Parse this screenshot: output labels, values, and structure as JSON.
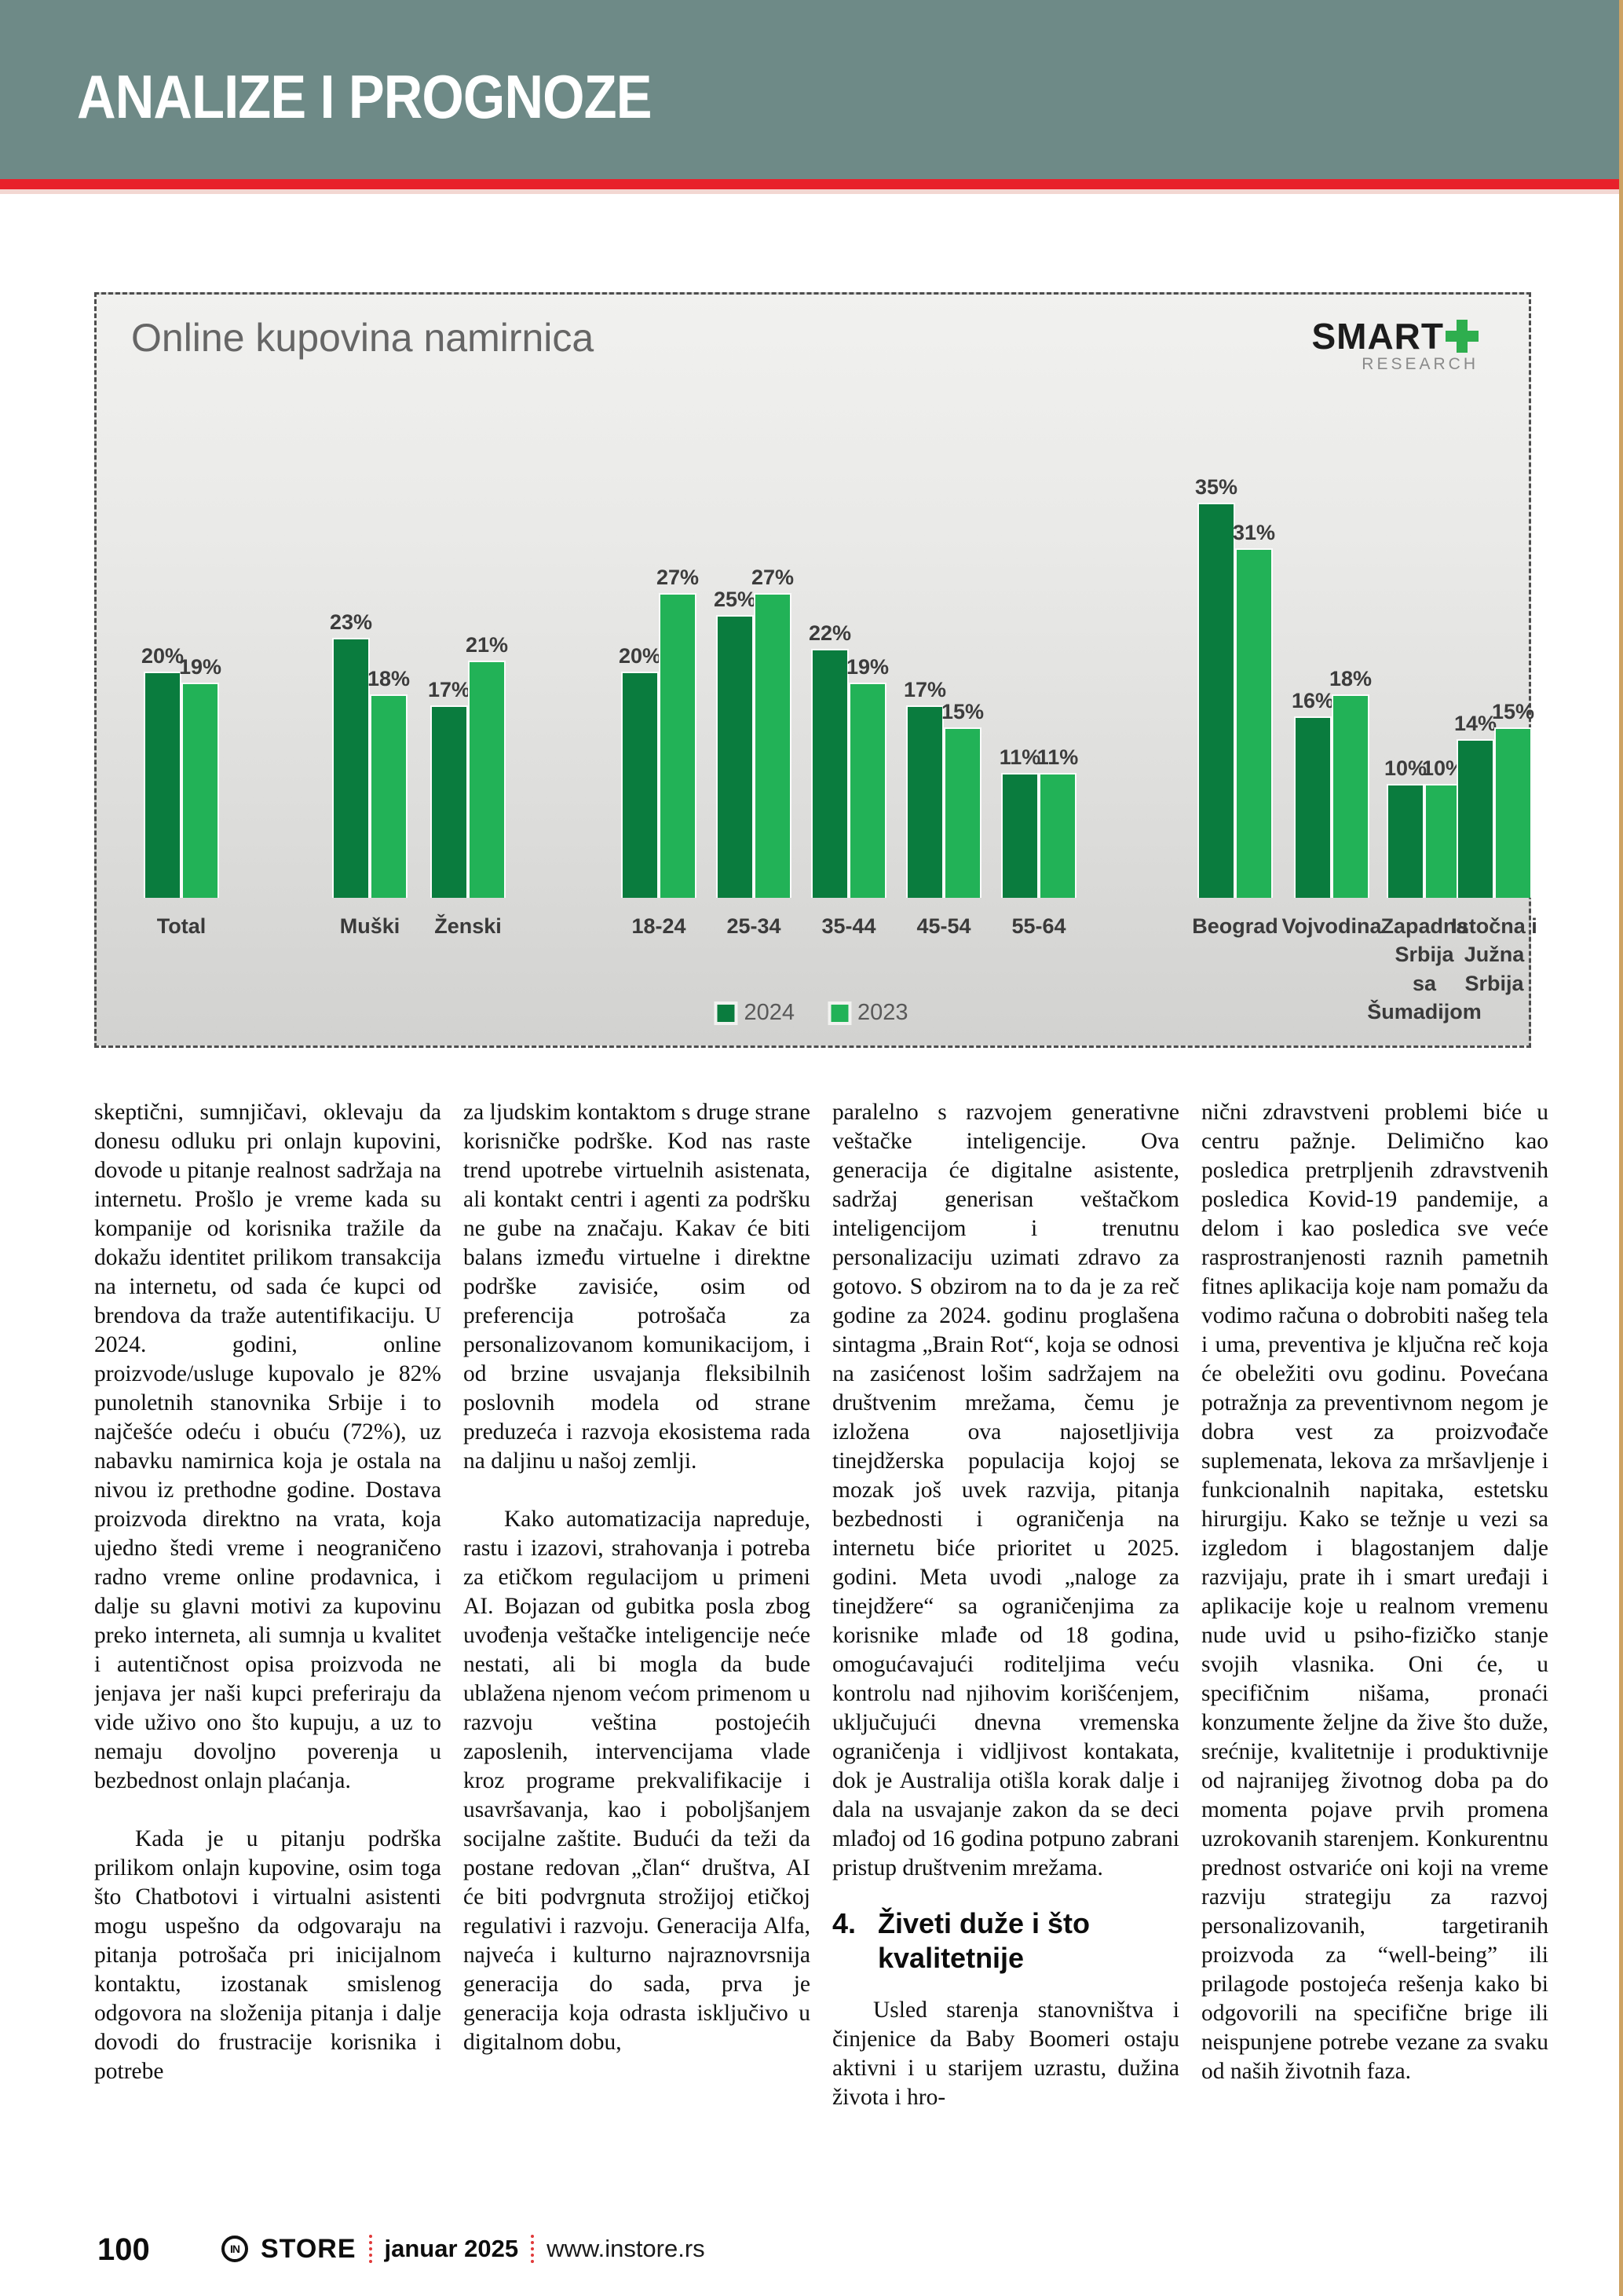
{
  "header": {
    "title": "ANALIZE I PROGNOZE",
    "band_color": "#6e8a87",
    "stripe_color": "#e8212b"
  },
  "chart": {
    "title": "Online kupovina namirnica",
    "logo": {
      "word": "SMART",
      "plus": "+",
      "subtitle": "RESEARCH"
    },
    "chart_data": {
      "type": "bar",
      "title": "Online kupovina namirnica",
      "unit": "%",
      "ylim": [
        0,
        38
      ],
      "grid": false,
      "legend_position": "bottom",
      "categories": [
        "Total",
        "Muški",
        "Ženski",
        "18-24",
        "25-34",
        "35-44",
        "45-54",
        "55-64",
        "Beograd",
        "Vojvodina",
        "Zapadna Srbija sa Šumadijom",
        "Istočna i Južna Srbija"
      ],
      "categories_display": [
        "Total",
        "Muški",
        "Ženski",
        "18-24",
        "25-34",
        "35-44",
        "45-54",
        "55-64",
        "Beograd",
        "Vojvodina",
        "Zapadna\nSrbija\nsa\nŠumadijom",
        "Istočna i\nJužna\nSrbija"
      ],
      "series": [
        {
          "name": "2024",
          "color": "#0a7c3e",
          "values": [
            20,
            23,
            17,
            20,
            25,
            22,
            17,
            11,
            35,
            16,
            10,
            14
          ]
        },
        {
          "name": "2023",
          "color": "#22b257",
          "values": [
            19,
            18,
            21,
            27,
            27,
            19,
            15,
            11,
            31,
            18,
            10,
            15
          ]
        }
      ]
    }
  },
  "article": {
    "columns": [
      {
        "blocks": [
          {
            "type": "p",
            "indent": false,
            "text": "skeptični, sumnjičavi, oklevaju da donesu odluku pri onlajn kupovini, dovode u pitanje realnost sadržaja na internetu. Prošlo je vreme kada su kompanije od korisnika tražile da dokažu identitet prilikom transakcija na internetu, od sada će kupci od brendova da traže autentifikaciju. U 2024. godini, online proizvode/usluge kupovalo je 82% punoletnih stanovnika Srbije i to najčešće odeću i obuću (72%), uz nabavku namirnica koja je ostala na nivou iz prethodne godine. Dostava proizvoda direktno na vrata, koja ujedno štedi vreme i neograničeno radno vreme online prodavnica, i dalje su glavni motivi za kupovinu preko interneta, ali sumnja u kvalitet i autentičnost opisa proizvoda ne jenjava jer naši kupci preferiraju da vide uživo ono što kupuju, a uz to nemaju dovoljno poverenja u bezbednost onlajn plaćanja."
          },
          {
            "type": "p",
            "indent": true,
            "text": "Kada je u pitanju podrška prilikom onlajn kupovine, osim toga što Chatbotovi i virtualni asistenti mogu uspešno da odgovaraju na pitanja potrošača pri inicijalnom kontaktu, izostanak smislenog odgovora na složenija pitanja i dalje dovodi do frustracije korisnika i potrebe"
          }
        ]
      },
      {
        "blocks": [
          {
            "type": "p",
            "indent": false,
            "text": "za ljudskim kontaktom s druge strane korisničke podrške. Kod nas raste trend upotrebe virtuelnih asistenata, ali kontakt centri i agenti za podršku ne gube na značaju. Kakav će biti balans između virtuelne i direktne podrške zavisiće, osim od preferencija potrošača za personalizovanom komunikacijom, i od brzine usvajanja fleksibilnih poslovnih modela od strane preduzeća i razvoja ekosistema rada na daljinu u našoj zemlji."
          },
          {
            "type": "p",
            "indent": true,
            "text": "Kako automatizacija napreduje, rastu i izazovi, strahovanja i potreba za etičkom regulacijom u primeni AI. Bojazan od gubitka posla zbog uvođenja veštačke inteligencije neće nestati, ali bi mogla da bude ublažena njenom većom primenom u razvoju veština postojećih zaposlenih, intervencijama vlade kroz programe prekvalifikacije i usavršavanja, kao i poboljšanjem socijalne zaštite. Budući da teži da postane redovan „član“ društva, AI će biti podvrgnuta strožijoj etičkoj regulativi i razvoju. Generacija Alfa, najveća i kulturno najraznovrsnija generacija do sada, prva je generacija koja odrasta isključivo u digitalnom dobu,"
          }
        ]
      },
      {
        "blocks": [
          {
            "type": "p",
            "indent": false,
            "text": "paralelno s razvojem generativne veštačke inteligencije. Ova generacija će digitalne asistente, sadržaj generisan veštačkom inteligencijom i trenutnu personalizaciju uzimati zdravo za gotovo. S obzirom na to da je za reč godine za 2024. godinu proglašena sintagma „Brain Rot“, koja se odnosi na zasićenost lošim sadržajem na društvenim mrežama, čemu je izložena ova najosetljivija tinejdžerska populacija kojoj se mozak još uvek razvija, pitanja bezbednosti i ograničenja na internetu biće prioritet u 2025. godini. Meta uvodi „naloge za tinejdžere“ sa ograničenjima za korisnike mlađe od 18 godina, omogućavajući roditeljima veću kontrolu nad njihovim korišćenjem, uključujući dnevna vremenska ograničenja i vidljivost kontakata, dok je Australija otišla korak dalje i dala na usvajanje zakon da se deci mlađoj od 16 godina potpuno zabrani pristup društvenim mrežama."
          },
          {
            "type": "h",
            "number": "4.",
            "text": "Živeti duže i što kvalitetnije"
          },
          {
            "type": "p",
            "indent": true,
            "text": "Usled starenja stanovništva i činjenice da Baby Boomeri ostaju aktivni i u starijem uzrastu, dužina života i hro-"
          }
        ]
      },
      {
        "blocks": [
          {
            "type": "p",
            "indent": false,
            "text": "nični zdravstveni problemi biće u centru pažnje. Delimično kao posledica pretrpljenih zdravstvenih posledica Kovid-19 pandemije, a delom i kao posledica sve veće rasprostranjenosti raznih pametnih fitnes aplikacija koje nam pomažu da vodimo računa o dobrobiti našeg tela i uma, preventiva je ključna reč koja će obeležiti ovu godinu. Povećana potražnja za preventivnom negom je dobra vest za proizvođače suplemenata, lekova za mršavljenje i funkcionalnih napitaka, estetsku hirurgiju. Kako se težnje u vezi sa izgledom i blagostanjem dalje razvijaju, prate ih i smart uređaji i aplikacije koje u realnom vremenu nude uvid u psiho-fizičko stanje svojih vlasnika. Oni će, u specifičnim nišama, pronaći konzumente željne da žive što duže, srećnije, kvalitetnije i produktivnije od najranijeg životnog doba pa do momenta pojave prvih promena uzrokovanih starenjem. Konkurentnu prednost ostvariće oni koji na vreme razviju strategiju za razvoj personalizovanih, targetiranih proizvoda za “well-being” ili prilagode postojeća rešenja kako bi odgovorili na specifične brige ili neispunjene potrebe vezane za svaku od naših životnih faza."
          }
        ]
      }
    ]
  },
  "footer": {
    "page_number": "100",
    "brand_mark": "IN",
    "brand_name": "STORE",
    "issue_date": "januar 2025",
    "website": "www.instore.rs"
  }
}
